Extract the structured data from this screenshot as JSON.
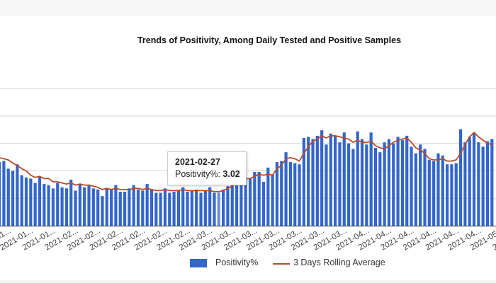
{
  "chart_data": {
    "type": "bar",
    "title": "Trends of Positivity, Among Daily Tested and Positive Samples",
    "xlabel": "",
    "ylabel": "",
    "ylim": [
      0,
      12.5
    ],
    "grid": true,
    "gridlines": [
      2.5,
      5,
      7.5,
      10,
      12.5
    ],
    "legend_position": "bottom",
    "tick_labels": [
      "2021-01...",
      "2021-01...",
      "2021-01...",
      "2021-02...",
      "2021-02...",
      "2021-02...",
      "2021-02...",
      "2021-02...",
      "2021-02...",
      "2021-03...",
      "2021-03...",
      "2021-03...",
      "2021-03...",
      "2021-03...",
      "2021-03...",
      "2021-03...",
      "2021-04...",
      "2021-04...",
      "2021-04...",
      "2021-04...",
      "2021-04...",
      "2021-04...",
      "2021-05...",
      "2021-05...",
      "2021-05..."
    ],
    "series": [
      {
        "name": "Positivity%",
        "kind": "bar",
        "color": "#3366cc",
        "values": [
          5.8,
          5.9,
          5.2,
          5.0,
          5.6,
          4.6,
          4.4,
          4.3,
          3.9,
          4.5,
          3.8,
          3.7,
          3.4,
          3.9,
          3.5,
          3.4,
          4.2,
          3.2,
          3.8,
          3.5,
          3.7,
          3.4,
          3.3,
          2.7,
          3.4,
          3.3,
          3.7,
          3.1,
          3.1,
          3.4,
          3.7,
          3.3,
          3.2,
          3.8,
          3.3,
          3.0,
          3.0,
          3.4,
          3.0,
          3.1,
          3.2,
          3.5,
          3.1,
          3.2,
          3.3,
          3.0,
          3.2,
          3.5,
          3.0,
          3.02,
          3.3,
          3.6,
          3.9,
          4.3,
          4.3,
          4.3,
          4.3,
          4.9,
          4.9,
          4.0,
          5.3,
          4.7,
          5.8,
          5.9,
          6.7,
          5.8,
          5.7,
          5.6,
          8.0,
          8.1,
          7.9,
          8.2,
          8.7,
          7.4,
          8.4,
          8.2,
          7.6,
          8.5,
          7.5,
          7.0,
          8.6,
          7.9,
          7.4,
          8.5,
          7.1,
          6.7,
          7.6,
          7.9,
          7.5,
          8.1,
          7.8,
          8.2,
          7.2,
          6.6,
          7.4,
          7.0,
          6.0,
          5.9,
          6.6,
          6.4,
          5.6,
          5.6,
          5.7,
          8.8,
          7.6,
          8.1,
          8.5,
          7.6,
          7.2,
          7.7,
          7.9
        ],
        "hovered_index": 49
      },
      {
        "name": "3 Days Rolling Average",
        "kind": "line",
        "color": "#b94a2e",
        "values": [
          6.2,
          6.1,
          6.0,
          5.7,
          5.5,
          5.2,
          5.0,
          4.6,
          4.4,
          4.5,
          4.3,
          4.3,
          4.0,
          4.0,
          3.9,
          3.8,
          3.9,
          3.7,
          3.8,
          3.7,
          3.7,
          3.6,
          3.5,
          3.3,
          3.4,
          3.3,
          3.4,
          3.3,
          3.3,
          3.3,
          3.4,
          3.4,
          3.3,
          3.4,
          3.3,
          3.2,
          3.2,
          3.3,
          3.2,
          3.2,
          3.2,
          3.3,
          3.2,
          3.2,
          3.2,
          3.2,
          3.2,
          3.2,
          3.1,
          3.1,
          3.2,
          3.4,
          3.6,
          3.9,
          4.1,
          4.3,
          4.3,
          4.5,
          4.7,
          4.6,
          4.7,
          4.6,
          5.2,
          5.5,
          6.1,
          6.2,
          6.1,
          5.9,
          6.6,
          7.2,
          7.7,
          7.9,
          8.2,
          8.0,
          8.2,
          8.2,
          8.1,
          8.0,
          7.9,
          7.6,
          7.8,
          7.6,
          7.6,
          7.7,
          7.3,
          7.1,
          7.0,
          7.3,
          7.6,
          7.8,
          7.9,
          8.0,
          7.6,
          7.1,
          6.9,
          6.6,
          6.1,
          6.0,
          6.0,
          6.1,
          5.9,
          5.9,
          6.0,
          6.6,
          7.4,
          8.1,
          8.5,
          8.1,
          7.8,
          7.5,
          7.4
        ]
      }
    ]
  },
  "tooltip": {
    "date": "2021-02-27",
    "label": "Positivity%:",
    "value": "3.02"
  },
  "legend": {
    "bar_label": "Positivity%",
    "line_label": "3 Days Rolling Average"
  }
}
